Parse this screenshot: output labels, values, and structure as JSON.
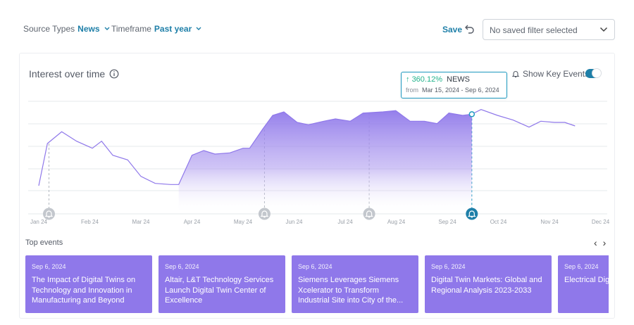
{
  "filters": {
    "source_label": "Source Types",
    "source_value": "News",
    "timeframe_label": "Timeframe",
    "timeframe_value": "Past year"
  },
  "save_label": "Save",
  "saved_filter": {
    "selected": "No saved filter selected"
  },
  "card": {
    "title": "Interest over time",
    "key_events_label": "Show Key Events",
    "key_events_enabled": true
  },
  "tooltip": {
    "change": "360.12%",
    "source": "NEWS",
    "from_label": "from",
    "range": "Mar 15, 2024 - Sep 6, 2024"
  },
  "colors": {
    "accent": "#1e7fa8",
    "series": "#8f78ea",
    "event_card": "#8f78ea",
    "positive": "#22b38c"
  },
  "chart_data": {
    "type": "area",
    "x_ticks": [
      "Jan 24",
      "Feb 24",
      "Mar 24",
      "Apr 24",
      "May 24",
      "Jun 24",
      "Jul 24",
      "Aug 24",
      "Sep 24",
      "Oct 24",
      "Nov 24",
      "Dec 24"
    ],
    "x": [
      0,
      0.17,
      0.45,
      0.74,
      1.05,
      1.23,
      1.45,
      1.74,
      2.0,
      2.28,
      2.58,
      2.74,
      3.0,
      3.23,
      3.45,
      3.74,
      4.0,
      4.13,
      4.38,
      4.58,
      4.8,
      5.06,
      5.28,
      5.58,
      5.81,
      6.1,
      6.35,
      6.74,
      6.99,
      7.27,
      7.55,
      7.8,
      8.03,
      8.3,
      8.48,
      8.66,
      8.98,
      9.29,
      9.6,
      9.83,
      10.1,
      10.3,
      10.5
    ],
    "y": [
      12,
      30,
      35,
      31,
      28,
      31,
      25,
      23,
      16,
      13,
      12.5,
      12.5,
      25,
      27,
      25.5,
      26,
      28,
      28,
      36,
      42,
      43.5,
      39,
      38,
      39.5,
      40.5,
      39.5,
      43,
      43.5,
      44,
      39.5,
      39.5,
      38.5,
      43,
      42,
      42.5,
      44.5,
      42,
      40,
      37,
      39.5,
      39,
      39,
      37.5
    ],
    "series": [
      {
        "values_ref": "y"
      }
    ],
    "ylim": [
      0,
      48
    ],
    "grid": true,
    "highlight_x": 8.48,
    "key_events_x": [
      0.2,
      4.42,
      6.47,
      8.48
    ]
  },
  "events": {
    "title": "Top events",
    "items": [
      {
        "date": "Sep 6, 2024",
        "title": "The Impact of Digital Twins on Technology and Innovation in Manufacturing and Beyond"
      },
      {
        "date": "Sep 6, 2024",
        "title": "Altair, L&T Technology Services Launch Digital Twin Center of Excellence"
      },
      {
        "date": "Sep 6, 2024",
        "title": "Siemens Leverages Siemens Xcelerator to Transform Industrial Site into City of the..."
      },
      {
        "date": "Sep 6, 2024",
        "title": "Digital Twin Markets: Global and Regional Analysis 2023-2033"
      },
      {
        "date": "Sep 6, 2024",
        "title": "Electrical Dig set to surge,"
      }
    ]
  }
}
